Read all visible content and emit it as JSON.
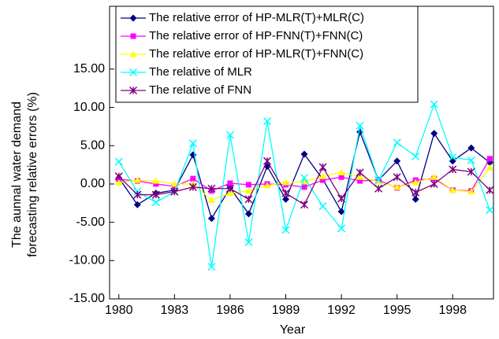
{
  "chart_data": {
    "type": "line",
    "x_label": "Year",
    "y_label": [
      "The aunnal water demand",
      "forecasting relative errors (%)"
    ],
    "x": [
      1980,
      1981,
      1982,
      1983,
      1984,
      1985,
      1986,
      1987,
      1988,
      1989,
      1990,
      1991,
      1992,
      1993,
      1994,
      1995,
      1996,
      1997,
      1998,
      1999,
      2000
    ],
    "xlim": [
      1979.5,
      2000.2
    ],
    "xticks": [
      1980,
      1983,
      1986,
      1989,
      1992,
      1995,
      1998
    ],
    "ylim": [
      -15,
      23.2
    ],
    "yticks": [
      {
        "value": -15,
        "label": "-15.00"
      },
      {
        "value": -10,
        "label": "-10.00"
      },
      {
        "value": -5,
        "label": "-5.00"
      },
      {
        "value": 0,
        "label": "0.00"
      },
      {
        "value": 5,
        "label": "5.00"
      },
      {
        "value": 10,
        "label": "10.00"
      },
      {
        "value": 15,
        "label": "15.00"
      }
    ],
    "series": [
      {
        "name": "The relative error of HP-MLR(T)+MLR(C)",
        "color": "#000080",
        "marker": "diamond",
        "values": [
          0.8,
          -2.7,
          -1.2,
          -0.8,
          3.8,
          -4.5,
          -0.5,
          -3.9,
          2.3,
          -2.0,
          3.9,
          0.6,
          -3.6,
          6.8,
          0.5,
          3.0,
          -2.0,
          6.6,
          3.0,
          4.7,
          2.8
        ]
      },
      {
        "name": "The relative error of HP-FNN(T)+FNN(C)",
        "color": "#ff00ff",
        "marker": "square",
        "values": [
          0.6,
          0.4,
          0.0,
          -0.3,
          0.7,
          -0.9,
          0.1,
          -0.1,
          0.0,
          -0.1,
          -0.4,
          0.5,
          0.9,
          0.4,
          0.5,
          -0.5,
          0.5,
          0.7,
          -0.8,
          -0.9,
          3.3
        ]
      },
      {
        "name": "The relative error of HP-MLR(T)+FNN(C)",
        "color": "#ffff00",
        "marker": "triangle",
        "values": [
          0.2,
          0.5,
          0.4,
          0.0,
          0.0,
          -2.1,
          -1.2,
          -0.9,
          -0.2,
          0.2,
          0.3,
          1.0,
          1.5,
          0.9,
          0.3,
          -0.4,
          0.2,
          0.9,
          -0.8,
          -1.0,
          2.1
        ]
      },
      {
        "name": "The relative of MLR",
        "color": "#00ffff",
        "marker": "x",
        "values": [
          2.9,
          -1.0,
          -2.4,
          -1.0,
          5.3,
          -10.8,
          6.4,
          -7.6,
          8.2,
          -6.0,
          0.8,
          -2.9,
          -5.8,
          7.6,
          0.5,
          5.4,
          3.6,
          10.4,
          3.5,
          3.1,
          -3.4
        ]
      },
      {
        "name": "The relative of FNN",
        "color": "#800080",
        "marker": "star",
        "values": [
          1.0,
          -1.4,
          -1.4,
          -1.0,
          -0.4,
          -0.6,
          -0.6,
          -2.0,
          3.0,
          -1.2,
          -2.7,
          2.2,
          -1.9,
          1.5,
          -0.6,
          0.9,
          -1.1,
          0.0,
          1.9,
          1.6,
          -0.8
        ]
      }
    ]
  }
}
